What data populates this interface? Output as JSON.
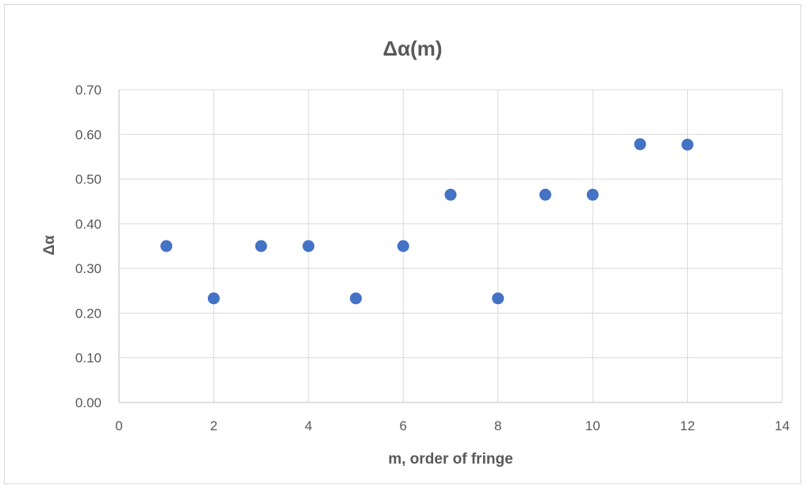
{
  "chart_data": {
    "type": "scatter",
    "title": "Δα(m)",
    "xlabel": "m, order of fringe",
    "ylabel": "Δα",
    "xlim": [
      0,
      14
    ],
    "ylim": [
      0,
      0.7
    ],
    "x_ticks": [
      "0",
      "2",
      "4",
      "6",
      "8",
      "10",
      "12",
      "14"
    ],
    "y_ticks": [
      "0.00",
      "0.10",
      "0.20",
      "0.30",
      "0.40",
      "0.50",
      "0.60",
      "0.70"
    ],
    "grid": "vertical and horizontal major gridlines",
    "legend": "none",
    "marker_color": "#4472c4",
    "series": [
      {
        "x": [
          1,
          2,
          3,
          4,
          5,
          6,
          7,
          8,
          9,
          10,
          11,
          12
        ],
        "y": [
          0.35,
          0.233,
          0.35,
          0.35,
          0.233,
          0.35,
          0.465,
          0.233,
          0.465,
          0.465,
          0.578,
          0.577
        ]
      }
    ]
  }
}
